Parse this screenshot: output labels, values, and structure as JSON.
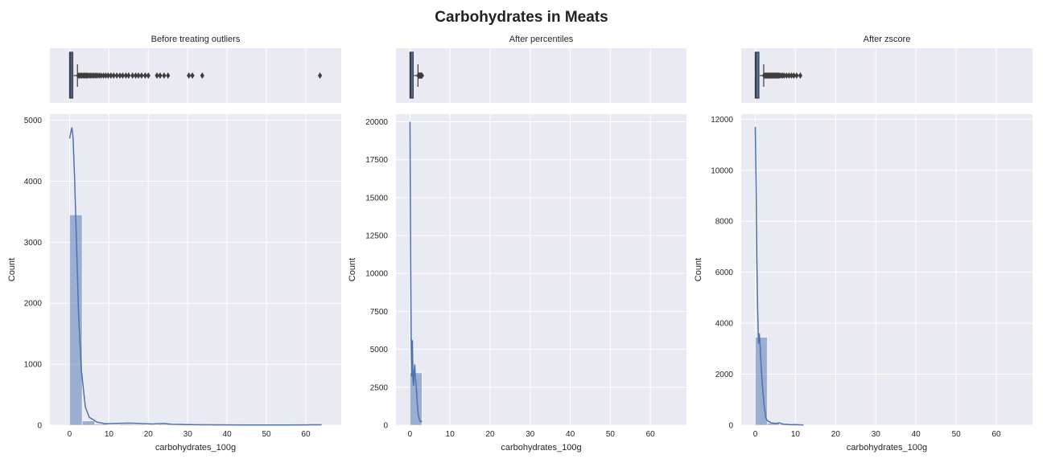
{
  "figure": {
    "title": "Carbohydrates in Meats",
    "background": "#ffffff",
    "axes_background": "#eaeaf2",
    "grid_color": "#ffffff",
    "hist_color": "#4c72b0",
    "box_color": "#4c72b0"
  },
  "chart_data": [
    {
      "type": "histogram",
      "title": "Before treating outliers",
      "xlabel": "carbohydrates_100g",
      "ylabel": "Count",
      "xlim": [
        -5,
        69
      ],
      "ylim": [
        0,
        5100
      ],
      "xticks": [
        0,
        10,
        20,
        30,
        40,
        50,
        60
      ],
      "xtick_labels": [
        "0",
        "10",
        "20",
        "30",
        "40",
        "50",
        "60"
      ],
      "yticks": [
        0,
        1000,
        2000,
        3000,
        4000,
        5000
      ],
      "ytick_labels": [
        "0",
        "1000",
        "2000",
        "3000",
        "4000",
        "5000"
      ],
      "bins": [
        {
          "x0": 0,
          "x1": 3.2,
          "count": 3450
        },
        {
          "x0": 3.2,
          "x1": 6.4,
          "count": 70
        },
        {
          "x0": 6.4,
          "x1": 9.6,
          "count": 20
        },
        {
          "x0": 9.6,
          "x1": 12.8,
          "count": 12
        },
        {
          "x0": 12.8,
          "x1": 16.0,
          "count": 18
        },
        {
          "x0": 16.0,
          "x1": 19.2,
          "count": 14
        },
        {
          "x0": 19.2,
          "x1": 22.4,
          "count": 10
        },
        {
          "x0": 22.4,
          "x1": 25.6,
          "count": 15
        },
        {
          "x0": 25.6,
          "x1": 28.8,
          "count": 3
        },
        {
          "x0": 28.8,
          "x1": 32.0,
          "count": 5
        },
        {
          "x0": 32.0,
          "x1": 35.2,
          "count": 2
        },
        {
          "x0": 60.8,
          "x1": 64.0,
          "count": 2
        }
      ],
      "kde": [
        [
          0,
          4700
        ],
        [
          0.3,
          4800
        ],
        [
          0.6,
          4880
        ],
        [
          0.9,
          4700
        ],
        [
          1.3,
          4000
        ],
        [
          1.8,
          2900
        ],
        [
          2.3,
          1800
        ],
        [
          3,
          900
        ],
        [
          4,
          300
        ],
        [
          5,
          130
        ],
        [
          7,
          50
        ],
        [
          9,
          25
        ],
        [
          12,
          30
        ],
        [
          15,
          35
        ],
        [
          18,
          28
        ],
        [
          21,
          20
        ],
        [
          24,
          30
        ],
        [
          26,
          15
        ],
        [
          30,
          10
        ],
        [
          35,
          6
        ],
        [
          45,
          4
        ],
        [
          55,
          4
        ],
        [
          62,
          6
        ],
        [
          64,
          6
        ]
      ],
      "box": {
        "q1": 0,
        "median": 0.3,
        "q3": 0.8,
        "whisker_low": 0,
        "whisker_high": 2.0,
        "outliers": [
          2.2,
          2.5,
          2.8,
          3.1,
          3.4,
          3.7,
          4.0,
          4.3,
          4.6,
          5.0,
          5.4,
          5.8,
          6.2,
          6.6,
          7.0,
          7.5,
          8.0,
          8.6,
          9.2,
          9.8,
          10.5,
          11.2,
          12.0,
          12.8,
          13.5,
          14.3,
          15.0,
          16.0,
          16.8,
          17.5,
          18.3,
          19.2,
          20.0,
          22.2,
          23.0,
          24.0,
          25.0,
          30.3,
          31.2,
          33.7,
          63.6
        ]
      }
    },
    {
      "type": "histogram",
      "title": "After percentiles",
      "xlabel": "carbohydrates_100g",
      "ylabel": "Count",
      "xlim": [
        -3.5,
        69
      ],
      "ylim": [
        0,
        20500
      ],
      "xticks": [
        0,
        10,
        20,
        30,
        40,
        50,
        60
      ],
      "xtick_labels": [
        "0",
        "10",
        "20",
        "30",
        "40",
        "50",
        "60"
      ],
      "yticks": [
        0,
        2500,
        5000,
        7500,
        10000,
        12500,
        15000,
        17500,
        20000
      ],
      "ytick_labels": [
        "0",
        "2500",
        "5000",
        "7500",
        "10000",
        "12500",
        "15000",
        "17500",
        "20000"
      ],
      "bins": [
        {
          "x0": 0,
          "x1": 3.0,
          "count": 3450
        }
      ],
      "kde": [
        [
          0,
          20000
        ],
        [
          0.15,
          12000
        ],
        [
          0.3,
          5500
        ],
        [
          0.45,
          3200
        ],
        [
          0.6,
          5600
        ],
        [
          0.75,
          3000
        ],
        [
          0.9,
          2600
        ],
        [
          1.05,
          3600
        ],
        [
          1.2,
          4000
        ],
        [
          1.35,
          3100
        ],
        [
          1.5,
          2800
        ],
        [
          1.8,
          1500
        ],
        [
          2.1,
          600
        ],
        [
          2.5,
          250
        ],
        [
          3.0,
          250
        ]
      ],
      "box": {
        "q1": 0,
        "median": 0.2,
        "q3": 0.8,
        "whisker_low": 0,
        "whisker_high": 2.0,
        "outliers": [
          2.1,
          2.2,
          2.3,
          2.4,
          2.5,
          2.6,
          2.7,
          2.8,
          2.9,
          3.0
        ]
      }
    },
    {
      "type": "histogram",
      "title": "After zscore",
      "xlabel": "carbohydrates_100g",
      "ylabel": "Count",
      "xlim": [
        -3.5,
        69
      ],
      "ylim": [
        0,
        12200
      ],
      "xticks": [
        0,
        10,
        20,
        30,
        40,
        50,
        60
      ],
      "xtick_labels": [
        "0",
        "10",
        "20",
        "30",
        "40",
        "50",
        "60"
      ],
      "yticks": [
        0,
        2000,
        4000,
        6000,
        8000,
        10000,
        12000
      ],
      "ytick_labels": [
        "0",
        "2000",
        "4000",
        "6000",
        "8000",
        "10000",
        "12000"
      ],
      "bins": [
        {
          "x0": 0,
          "x1": 3.0,
          "count": 3450
        },
        {
          "x0": 3.0,
          "x1": 6.0,
          "count": 80
        },
        {
          "x0": 6.0,
          "x1": 9.0,
          "count": 40
        },
        {
          "x0": 9.0,
          "x1": 12.0,
          "count": 20
        }
      ],
      "kde": [
        [
          0,
          11700
        ],
        [
          0.2,
          9500
        ],
        [
          0.4,
          6500
        ],
        [
          0.6,
          4500
        ],
        [
          0.8,
          3200
        ],
        [
          1.0,
          3600
        ],
        [
          1.2,
          3100
        ],
        [
          1.5,
          2200
        ],
        [
          1.8,
          1500
        ],
        [
          2.2,
          800
        ],
        [
          2.6,
          300
        ],
        [
          3,
          180
        ],
        [
          4,
          90
        ],
        [
          5,
          70
        ],
        [
          6,
          90
        ],
        [
          7,
          40
        ],
        [
          8,
          30
        ],
        [
          9,
          20
        ],
        [
          10,
          25
        ],
        [
          11,
          15
        ],
        [
          12,
          10
        ]
      ],
      "box": {
        "q1": 0,
        "median": 0.2,
        "q3": 0.9,
        "whisker_low": 0,
        "whisker_high": 2.1,
        "outliers": [
          2.2,
          2.4,
          2.6,
          2.8,
          3.0,
          3.2,
          3.4,
          3.6,
          3.8,
          4.0,
          4.2,
          4.4,
          4.6,
          4.8,
          5.0,
          5.2,
          5.4,
          5.6,
          5.8,
          6.0,
          6.4,
          6.8,
          7.2,
          7.8,
          8.4,
          9.0,
          9.6,
          10.3,
          11.2
        ]
      }
    }
  ]
}
